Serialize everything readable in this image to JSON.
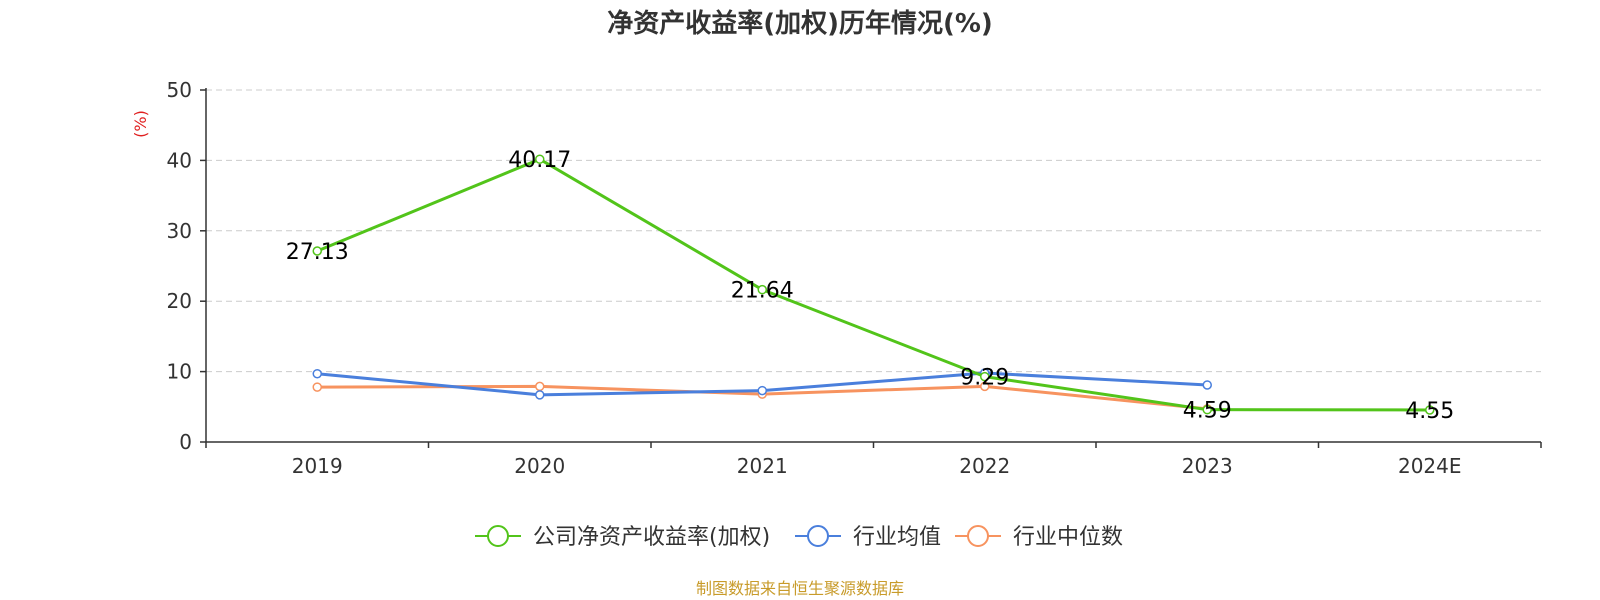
{
  "chart_data": {
    "type": "line",
    "title": "净资产收益率(加权)历年情况(%)",
    "xlabel": "",
    "ylabel": "(%)",
    "ylim": [
      0,
      50
    ],
    "yticks": [
      0,
      10,
      20,
      30,
      40,
      50
    ],
    "categories": [
      "2019",
      "2020",
      "2021",
      "2022",
      "2023",
      "2024E"
    ],
    "grid": true,
    "legend_position": "bottom-center",
    "series": [
      {
        "name": "公司净资产收益率(加权)",
        "color": "#52c41a",
        "values": [
          27.13,
          40.17,
          21.64,
          9.29,
          4.59,
          4.55
        ],
        "labels": true
      },
      {
        "name": "行业均值",
        "color": "#4a7fdc",
        "values": [
          9.7,
          6.7,
          7.3,
          9.8,
          8.1,
          null
        ],
        "labels": false
      },
      {
        "name": "行业中位数",
        "color": "#f7935f",
        "values": [
          7.8,
          7.9,
          6.8,
          7.9,
          4.7,
          null
        ],
        "labels": false
      }
    ],
    "ylabel_color": "#e02020"
  },
  "footer": {
    "source": "制图数据来自恒生聚源数据库",
    "source_color": "#c89b2a"
  }
}
